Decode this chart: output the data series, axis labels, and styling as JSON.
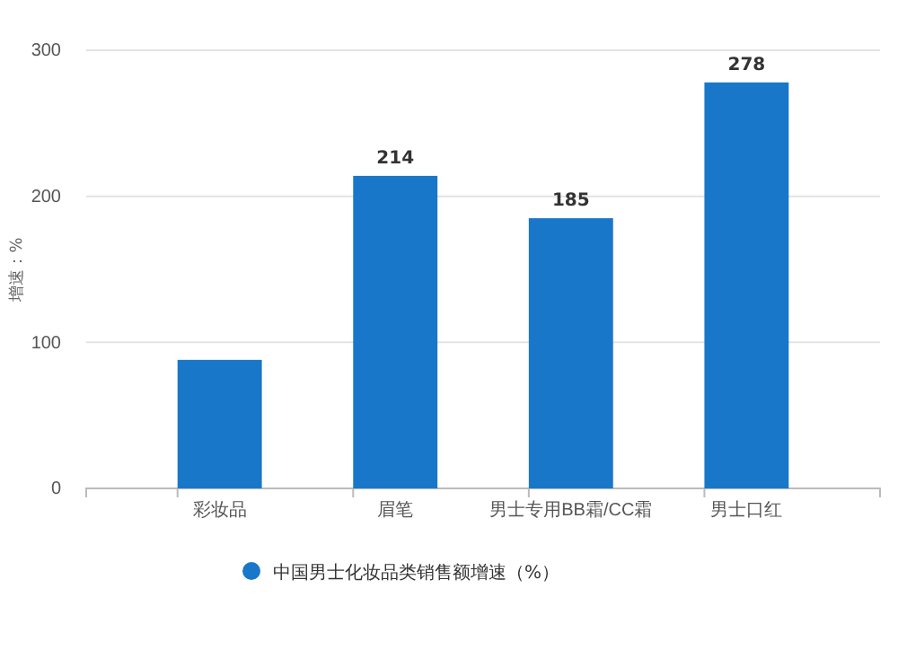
{
  "chart_data": {
    "type": "bar",
    "ylabel": "增速：%",
    "categories": [
      "彩妆品",
      "眉笔",
      "男士专用BB霜/CC霜",
      "男士口红"
    ],
    "series": [
      {
        "name": "中国男士化妆品类销售额增速（%）",
        "color": "#1877c8",
        "values": [
          88,
          214,
          185,
          278
        ]
      }
    ],
    "value_labels": [
      null,
      "214",
      "185",
      "278"
    ],
    "ylim": [
      0,
      300
    ],
    "yticks": [
      0,
      100,
      200,
      300
    ],
    "grid": "y",
    "legend": "bottom"
  }
}
